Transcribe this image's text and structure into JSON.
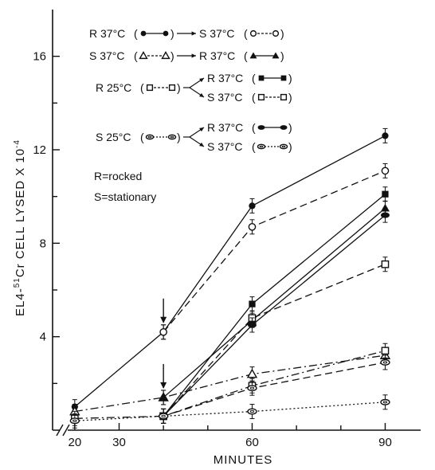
{
  "chart_data": {
    "type": "line",
    "xlabel": "MINUTES",
    "ylabel_html": [
      "EL4-",
      "51",
      "Cr  CELL  LYSED X 10",
      "-4"
    ],
    "x_ticks": [
      20,
      30,
      60,
      90
    ],
    "y_ticks": [
      4,
      8,
      12,
      16
    ],
    "xlim": [
      15,
      98
    ],
    "ylim": [
      0,
      18
    ],
    "axis_break": "//",
    "arrows_at": [
      {
        "x": 40,
        "y": 4.2
      },
      {
        "x": 40,
        "y": 1.4
      }
    ],
    "legend": [
      {
        "from": "R 37°C",
        "from_marker": "filled-circle",
        "to": [
          {
            "label": "S 37°C",
            "marker": "open-circle"
          }
        ]
      },
      {
        "from": "S 37°C",
        "from_marker": "open-triangle",
        "to": [
          {
            "label": "R 37°C",
            "marker": "filled-triangle"
          }
        ]
      },
      {
        "from": "R 25°C",
        "from_marker": "open-square",
        "to": [
          {
            "label": "R 37°C",
            "marker": "filled-square"
          },
          {
            "label": "S 37°C",
            "marker": "open-square"
          }
        ]
      },
      {
        "from": "S 25°C",
        "from_marker": "open-oval",
        "to": [
          {
            "label": "R 37°C",
            "marker": "filled-oval"
          },
          {
            "label": "S 37°C",
            "marker": "open-oval"
          }
        ]
      }
    ],
    "notes": [
      "R=rocked",
      "S=stationary"
    ],
    "series": [
      {
        "marker": "filled-circle",
        "dash": "solid",
        "x": [
          20,
          40,
          60,
          90
        ],
        "y": [
          1.0,
          4.2,
          9.6,
          12.6
        ]
      },
      {
        "marker": "open-circle",
        "dash": "dashed",
        "x": [
          40,
          60,
          90
        ],
        "y": [
          4.2,
          8.7,
          11.1
        ]
      },
      {
        "marker": "open-triangle",
        "dash": "dashdot",
        "x": [
          20,
          40,
          60,
          90
        ],
        "y": [
          0.8,
          1.4,
          2.4,
          3.2
        ]
      },
      {
        "marker": "filled-triangle",
        "dash": "solid",
        "x": [
          40,
          60,
          90
        ],
        "y": [
          1.4,
          4.7,
          9.5
        ]
      },
      {
        "marker": "open-square",
        "dash": "dashdot",
        "x": [
          20,
          40,
          60,
          90
        ],
        "y": [
          0.5,
          0.6,
          1.9,
          3.4
        ]
      },
      {
        "marker": "filled-square",
        "dash": "solid",
        "x": [
          40,
          60,
          90
        ],
        "y": [
          0.6,
          5.4,
          10.1
        ]
      },
      {
        "marker": "open-square",
        "dash": "dashed",
        "x": [
          40,
          60,
          90
        ],
        "y": [
          0.6,
          4.8,
          7.1
        ]
      },
      {
        "marker": "open-oval",
        "dash": "dotted",
        "x": [
          20,
          40,
          60,
          90
        ],
        "y": [
          0.4,
          0.6,
          0.8,
          1.2
        ]
      },
      {
        "marker": "filled-oval",
        "dash": "solid",
        "x": [
          40,
          60,
          90
        ],
        "y": [
          0.6,
          4.5,
          9.2
        ]
      },
      {
        "marker": "open-oval",
        "dash": "dashed",
        "x": [
          40,
          60,
          90
        ],
        "y": [
          0.6,
          1.8,
          2.9
        ]
      }
    ]
  }
}
